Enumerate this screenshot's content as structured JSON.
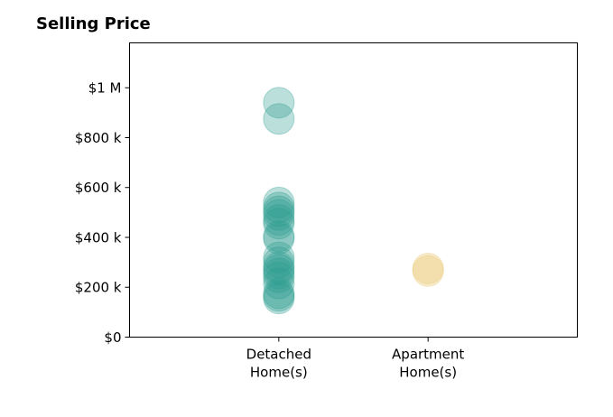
{
  "chart_data": {
    "type": "scatter",
    "title": "Selling Price",
    "xlabel": "",
    "ylabel": "",
    "categories": [
      "Detached Home(s)",
      "Apartment Home(s)"
    ],
    "category_label_lines": [
      [
        "Detached",
        "Home(s)"
      ],
      [
        "Apartment",
        "Home(s)"
      ]
    ],
    "ylim": [
      0,
      1180000
    ],
    "xlim": [
      -1,
      2
    ],
    "yticks": [
      0,
      200000,
      400000,
      600000,
      800000,
      1000000
    ],
    "ytick_labels": [
      "$0",
      "$200 k",
      "$400 k",
      "$600 k",
      "$800 k",
      "$1 M"
    ],
    "grid": false,
    "series": [
      {
        "color": "#2a9d8f",
        "x_category": "Detached Home(s)",
        "values": [
          940000,
          875000,
          540000,
          520000,
          505000,
          490000,
          470000,
          455000,
          405000,
          395000,
          320000,
          300000,
          280000,
          270000,
          255000,
          240000,
          215000,
          175000,
          165000,
          155000
        ]
      },
      {
        "color": "#e9c46a",
        "x_category": "Apartment Home(s)",
        "values": [
          275000,
          265000
        ]
      }
    ]
  }
}
